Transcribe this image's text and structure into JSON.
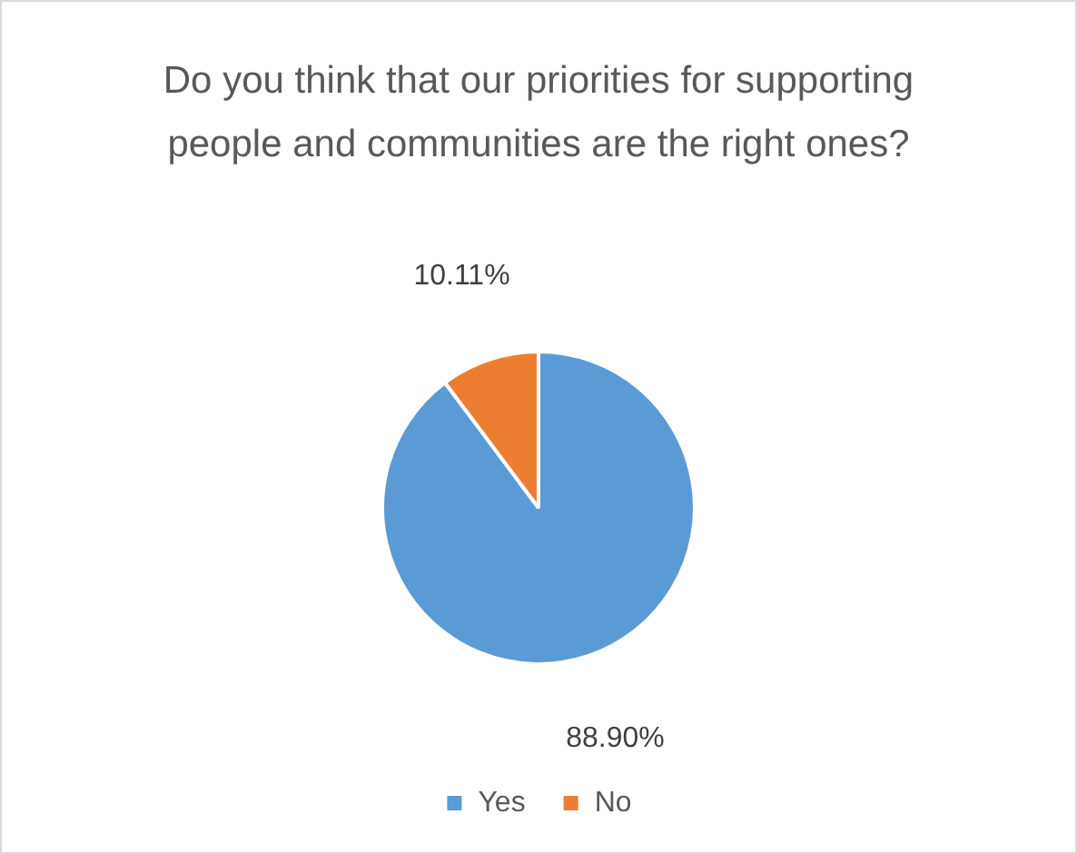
{
  "chart_data": {
    "type": "pie",
    "title": "Do you think that our priorities for supporting people and communities are the right ones?",
    "categories": [
      "Yes",
      "No"
    ],
    "values": [
      88.9,
      10.11
    ],
    "colors": [
      "#5b9bd5",
      "#ed7d31"
    ],
    "value_labels": [
      "88.90%",
      "10.11%"
    ],
    "legend": "bottom"
  }
}
